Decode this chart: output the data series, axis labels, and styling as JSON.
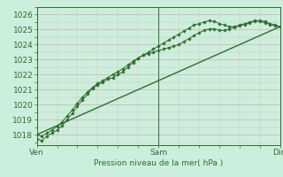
{
  "title": "",
  "xlabel": "Pression niveau de la mer( hPa )",
  "bg_color": "#cceedd",
  "grid_major_color": "#ddaaaa",
  "grid_minor_color": "#ddbbbb",
  "plot_bg": "#cceedd",
  "ylim": [
    1017.3,
    1026.5
  ],
  "xlim": [
    0,
    48
  ],
  "xticks": [
    0,
    24,
    48
  ],
  "xticklabels": [
    "Ven",
    "Sam",
    "Dim"
  ],
  "yticks": [
    1018,
    1019,
    1020,
    1021,
    1022,
    1023,
    1024,
    1025,
    1026
  ],
  "line_color": "#2d6e2d",
  "series1_x": [
    0,
    1,
    2,
    3,
    4,
    5,
    6,
    7,
    8,
    9,
    10,
    11,
    12,
    13,
    14,
    15,
    16,
    17,
    18,
    19,
    20,
    21,
    22,
    23,
    24,
    25,
    26,
    27,
    28,
    29,
    30,
    31,
    32,
    33,
    34,
    35,
    36,
    37,
    38,
    39,
    40,
    41,
    42,
    43,
    44,
    45,
    46,
    47,
    48
  ],
  "series1_y": [
    1017.7,
    1017.6,
    1017.9,
    1018.1,
    1018.3,
    1018.6,
    1019.0,
    1019.4,
    1019.9,
    1020.3,
    1020.7,
    1021.1,
    1021.3,
    1021.5,
    1021.7,
    1021.8,
    1022.0,
    1022.2,
    1022.5,
    1022.8,
    1023.1,
    1023.3,
    1023.5,
    1023.7,
    1023.9,
    1024.1,
    1024.3,
    1024.5,
    1024.7,
    1024.9,
    1025.1,
    1025.3,
    1025.4,
    1025.5,
    1025.6,
    1025.55,
    1025.4,
    1025.3,
    1025.2,
    1025.2,
    1025.3,
    1025.4,
    1025.5,
    1025.6,
    1025.6,
    1025.55,
    1025.4,
    1025.3,
    1025.2
  ],
  "series2_x": [
    0,
    1,
    2,
    3,
    4,
    5,
    6,
    7,
    8,
    9,
    10,
    11,
    12,
    13,
    14,
    15,
    16,
    17,
    18,
    19,
    20,
    21,
    22,
    23,
    24,
    25,
    26,
    27,
    28,
    29,
    30,
    31,
    32,
    33,
    34,
    35,
    36,
    37,
    38,
    39,
    40,
    41,
    42,
    43,
    44,
    45,
    46,
    47,
    48
  ],
  "series2_y": [
    1018.0,
    1017.9,
    1018.1,
    1018.3,
    1018.55,
    1018.85,
    1019.25,
    1019.65,
    1020.1,
    1020.5,
    1020.85,
    1021.15,
    1021.4,
    1021.6,
    1021.8,
    1022.0,
    1022.2,
    1022.4,
    1022.65,
    1022.9,
    1023.1,
    1023.3,
    1023.4,
    1023.5,
    1023.6,
    1023.7,
    1023.8,
    1023.9,
    1024.0,
    1024.2,
    1024.4,
    1024.6,
    1024.8,
    1024.95,
    1025.05,
    1025.05,
    1024.95,
    1024.95,
    1025.05,
    1025.15,
    1025.25,
    1025.35,
    1025.45,
    1025.55,
    1025.55,
    1025.45,
    1025.35,
    1025.25,
    1025.2
  ],
  "series3_x": [
    0,
    48
  ],
  "series3_y": [
    1018.0,
    1025.2
  ]
}
